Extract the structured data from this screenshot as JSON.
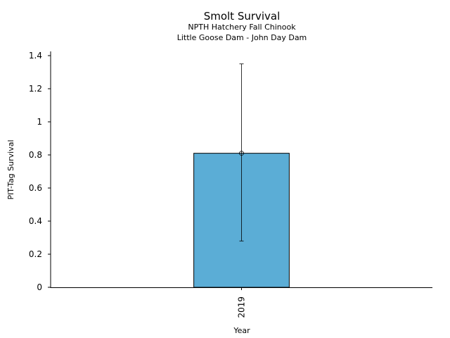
{
  "chart_data": {
    "type": "bar",
    "title": "Smolt Survival",
    "subtitle_lines": [
      "NPTH Hatchery Fall Chinook",
      "Little Goose Dam - John Day Dam"
    ],
    "xlabel": "Year",
    "ylabel": "PIT-Tag Survival",
    "categories": [
      "2019"
    ],
    "values": [
      0.81
    ],
    "error_low": [
      0.28
    ],
    "error_high": [
      1.35
    ],
    "ylim": [
      0,
      1.4
    ],
    "yticks": [
      0,
      0.2,
      0.4,
      0.6,
      0.8,
      1,
      1.2,
      1.4
    ],
    "ytick_labels": [
      "0",
      "0.2",
      "0.4",
      "0.6",
      "0.8",
      "1",
      "1.2",
      "1.4"
    ],
    "grid": false,
    "bar_color": "#5badd6"
  }
}
